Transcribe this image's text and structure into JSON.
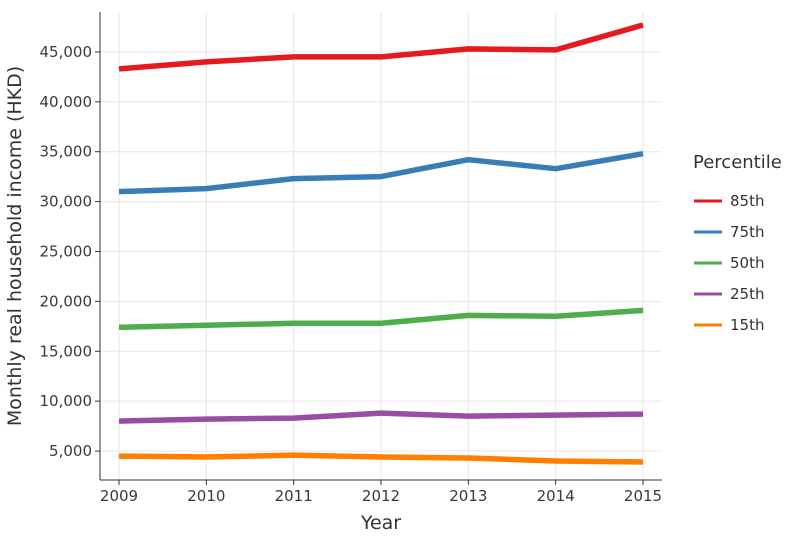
{
  "chart_data": {
    "type": "line",
    "xlabel": "Year",
    "ylabel": "Monthly real household income (HKD)",
    "x": [
      2009,
      2010,
      2011,
      2012,
      2013,
      2014,
      2015
    ],
    "x_tick_labels": [
      "2009",
      "2010",
      "2011",
      "2012",
      "2013",
      "2014",
      "2015"
    ],
    "xlim": [
      2009,
      2015
    ],
    "ylim": [
      2100,
      49000
    ],
    "y_ticks": [
      5000,
      10000,
      15000,
      20000,
      25000,
      30000,
      35000,
      40000,
      45000
    ],
    "y_tick_labels": [
      "5,000",
      "10,000",
      "15,000",
      "20,000",
      "25,000",
      "30,000",
      "35,000",
      "40,000",
      "45,000"
    ],
    "grid": true,
    "legend": {
      "title": "Percentile",
      "position": "right"
    },
    "series": [
      {
        "name": "85th",
        "color": "#e41a1c",
        "values": [
          43300,
          44000,
          44500,
          44500,
          45300,
          45200,
          47700
        ]
      },
      {
        "name": "75th",
        "color": "#377eb8",
        "values": [
          31000,
          31300,
          32300,
          32500,
          34200,
          33300,
          34800
        ]
      },
      {
        "name": "50th",
        "color": "#4daf4a",
        "values": [
          17400,
          17600,
          17800,
          17800,
          18600,
          18500,
          19100
        ]
      },
      {
        "name": "25th",
        "color": "#984ea3",
        "values": [
          8000,
          8200,
          8300,
          8800,
          8500,
          8600,
          8700
        ]
      },
      {
        "name": "15th",
        "color": "#ff7f00",
        "values": [
          4500,
          4400,
          4600,
          4400,
          4300,
          4000,
          3900
        ]
      }
    ]
  }
}
